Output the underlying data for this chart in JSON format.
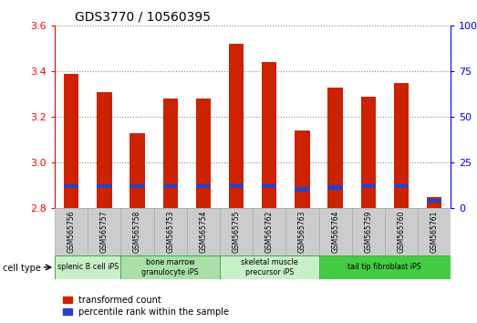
{
  "title": "GDS3770 / 10560395",
  "samples": [
    "GSM565756",
    "GSM565757",
    "GSM565758",
    "GSM565753",
    "GSM565754",
    "GSM565755",
    "GSM565762",
    "GSM565763",
    "GSM565764",
    "GSM565759",
    "GSM565760",
    "GSM565761"
  ],
  "red_values": [
    3.39,
    3.31,
    3.13,
    3.28,
    3.28,
    3.52,
    3.44,
    3.14,
    3.33,
    3.29,
    3.35,
    2.85
  ],
  "blue_heights": [
    0.018,
    0.018,
    0.018,
    0.018,
    0.018,
    0.018,
    0.018,
    0.018,
    0.018,
    0.018,
    0.018,
    0.018
  ],
  "blue_positions": [
    2.888,
    2.888,
    2.888,
    2.888,
    2.888,
    2.888,
    2.888,
    2.875,
    2.882,
    2.888,
    2.888,
    2.825
  ],
  "ymin": 2.8,
  "ymax": 3.6,
  "y2min": 0,
  "y2max": 100,
  "yticks": [
    2.8,
    3.0,
    3.2,
    3.4,
    3.6
  ],
  "y2ticks": [
    0,
    25,
    50,
    75,
    100
  ],
  "bar_color_red": "#cc2200",
  "bar_color_blue": "#2244cc",
  "bar_width": 0.45,
  "legend_red": "transformed count",
  "legend_blue": "percentile rank within the sample",
  "cell_type_label": "cell type",
  "title_fontsize": 10,
  "tick_fontsize": 8,
  "sample_bg": "#cccccc",
  "cell_type_data": [
    {
      "label": "splenic B cell iPS",
      "start": 0,
      "end": 2,
      "color": "#c8f0c8"
    },
    {
      "label": "bone marrow\ngranulocyte iPS",
      "start": 2,
      "end": 5,
      "color": "#a8e0a8"
    },
    {
      "label": "skeletal muscle\nprecursor iPS",
      "start": 5,
      "end": 8,
      "color": "#c8f0c8"
    },
    {
      "label": "tail tip fibroblast iPS",
      "start": 8,
      "end": 12,
      "color": "#44cc44"
    }
  ]
}
